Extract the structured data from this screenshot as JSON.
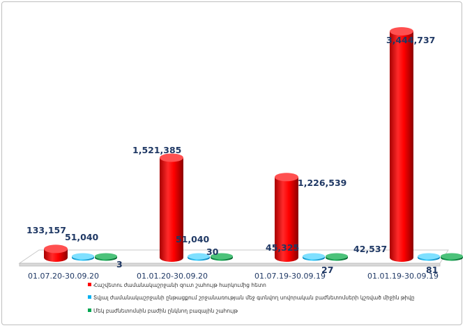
{
  "chart_data": {
    "type": "bar",
    "style": "3d-cylinder",
    "categories": [
      "01.07.20-30.09.20",
      "01.01.20-30.09.20",
      "01.07.19-30.09.19",
      "01.01.19-30.09.19"
    ],
    "series": [
      {
        "name": "Հաշվետու ժամանակաշրջանի զուտ շահույթ հարկումից հետո",
        "color": "#ff0000",
        "values": [
          133157,
          1521385,
          1226539,
          3444737
        ],
        "labels": [
          "133,157",
          "1,521,385",
          "1,226,539",
          "3,444,737"
        ]
      },
      {
        "name": "Տվյալ ժամանակաշրջանի ընթացքում շրջանառության մեջ գտնվող սովորական բաժնետոմսերի կշռված միջին թիվը",
        "color": "#00b0f0",
        "values": [
          51040,
          51040,
          45325,
          42537
        ],
        "labels": [
          "51,040",
          "51,040",
          "45,325",
          "42,537"
        ]
      },
      {
        "name": "Մեկ բաժնետոմսին բաժին ընկնող բազային շահույթ",
        "color": "#00a651",
        "values": [
          3,
          30,
          27,
          81
        ],
        "labels": [
          "3",
          "30",
          "27",
          "81"
        ]
      }
    ],
    "ylim": [
      0,
      3500000
    ],
    "grid": false,
    "legend": "bottom"
  }
}
